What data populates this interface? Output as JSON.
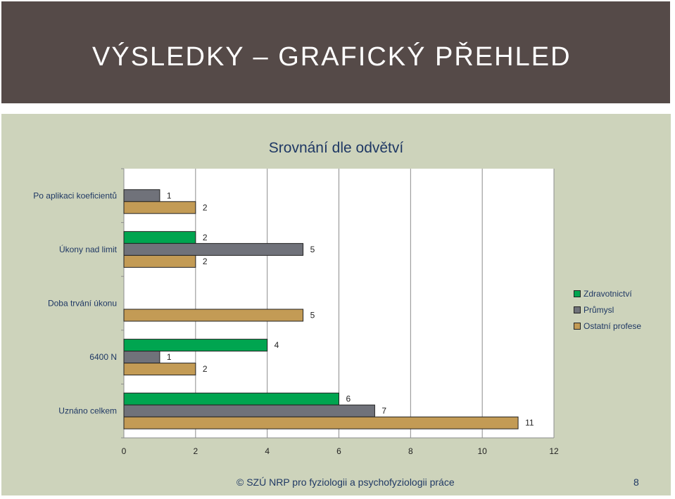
{
  "slide": {
    "title": "VÝSLEDKY – GRAFICKÝ PŘEHLED",
    "footer": "© SZÚ NRP pro fyziologii a psychofyziologii práce",
    "page_number": "8"
  },
  "colors": {
    "header_background": "#554a48",
    "chart_background": "#cdd3bb"
  },
  "chart_data": {
    "type": "bar",
    "orientation": "horizontal",
    "title": "Srovnání dle odvětví",
    "categories": [
      "Po aplikaci koeficientů",
      "Úkony nad limit",
      "Doba trvání úkonu",
      "6400 N",
      "Uznáno celkem"
    ],
    "series": [
      {
        "name": "Zdravotnictví",
        "color": "#00a550",
        "values": [
          null,
          2,
          null,
          4,
          6
        ]
      },
      {
        "name": "Průmysl",
        "color": "#70727a",
        "values": [
          1,
          5,
          null,
          1,
          7
        ]
      },
      {
        "name": "Ostatní profese",
        "color": "#c39b55",
        "values": [
          2,
          2,
          5,
          2,
          11
        ]
      }
    ],
    "x_ticks": [
      "0",
      "2",
      "4",
      "6",
      "8",
      "10",
      "12"
    ],
    "xlim": [
      0,
      12
    ],
    "grid": true,
    "legend_position": "right",
    "data_labels": true
  }
}
